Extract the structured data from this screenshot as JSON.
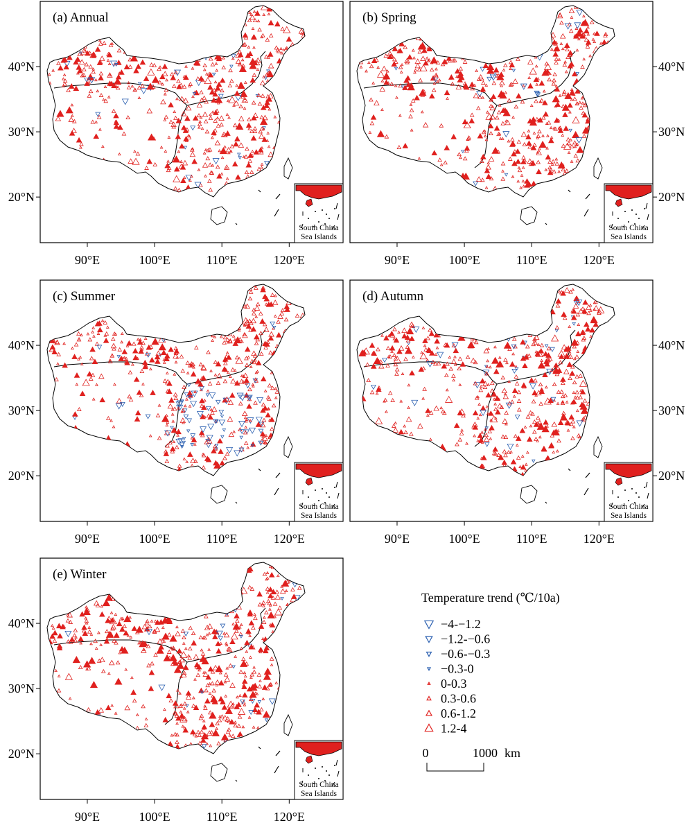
{
  "panels": [
    {
      "key": "annual",
      "label": "(a) Annual"
    },
    {
      "key": "spring",
      "label": "(b) Spring"
    },
    {
      "key": "summer",
      "label": "(c) Summer"
    },
    {
      "key": "autumn",
      "label": "(d) Autumn"
    },
    {
      "key": "winter",
      "label": "(e) Winter"
    }
  ],
  "axes": {
    "lon_ticks": [
      "90°E",
      "100°E",
      "110°E",
      "120°E"
    ],
    "lat_ticks": [
      "20°N",
      "30°N",
      "40°N"
    ],
    "lon_values": [
      90,
      100,
      110,
      120
    ],
    "lat_values": [
      20,
      30,
      40
    ],
    "lon_range": [
      83,
      128
    ],
    "lat_range": [
      13,
      50
    ]
  },
  "inset": {
    "line1": "South China",
    "line2": "Sea Islands"
  },
  "legend": {
    "title": "Temperature trend (℃/10a)",
    "classes": [
      {
        "label": "−4-−1.2",
        "direction": "down",
        "color": "#2a5fb0"
      },
      {
        "label": "−1.2-−0.6",
        "direction": "down",
        "color": "#2a5fb0"
      },
      {
        "label": "−0.6-−0.3",
        "direction": "down",
        "color": "#2a5fb0"
      },
      {
        "label": "−0.3-0",
        "direction": "down",
        "color": "#2a5fb0"
      },
      {
        "label": "0-0.3",
        "direction": "up",
        "color": "#e0201e"
      },
      {
        "label": "0.3-0.6",
        "direction": "up",
        "color": "#e0201e"
      },
      {
        "label": "0.6-1.2",
        "direction": "up",
        "color": "#e0201e"
      },
      {
        "label": "1.2-4",
        "direction": "up",
        "color": "#e0201e"
      }
    ]
  },
  "scale_bar": {
    "zero": "0",
    "max": "1000",
    "unit": "km"
  }
}
